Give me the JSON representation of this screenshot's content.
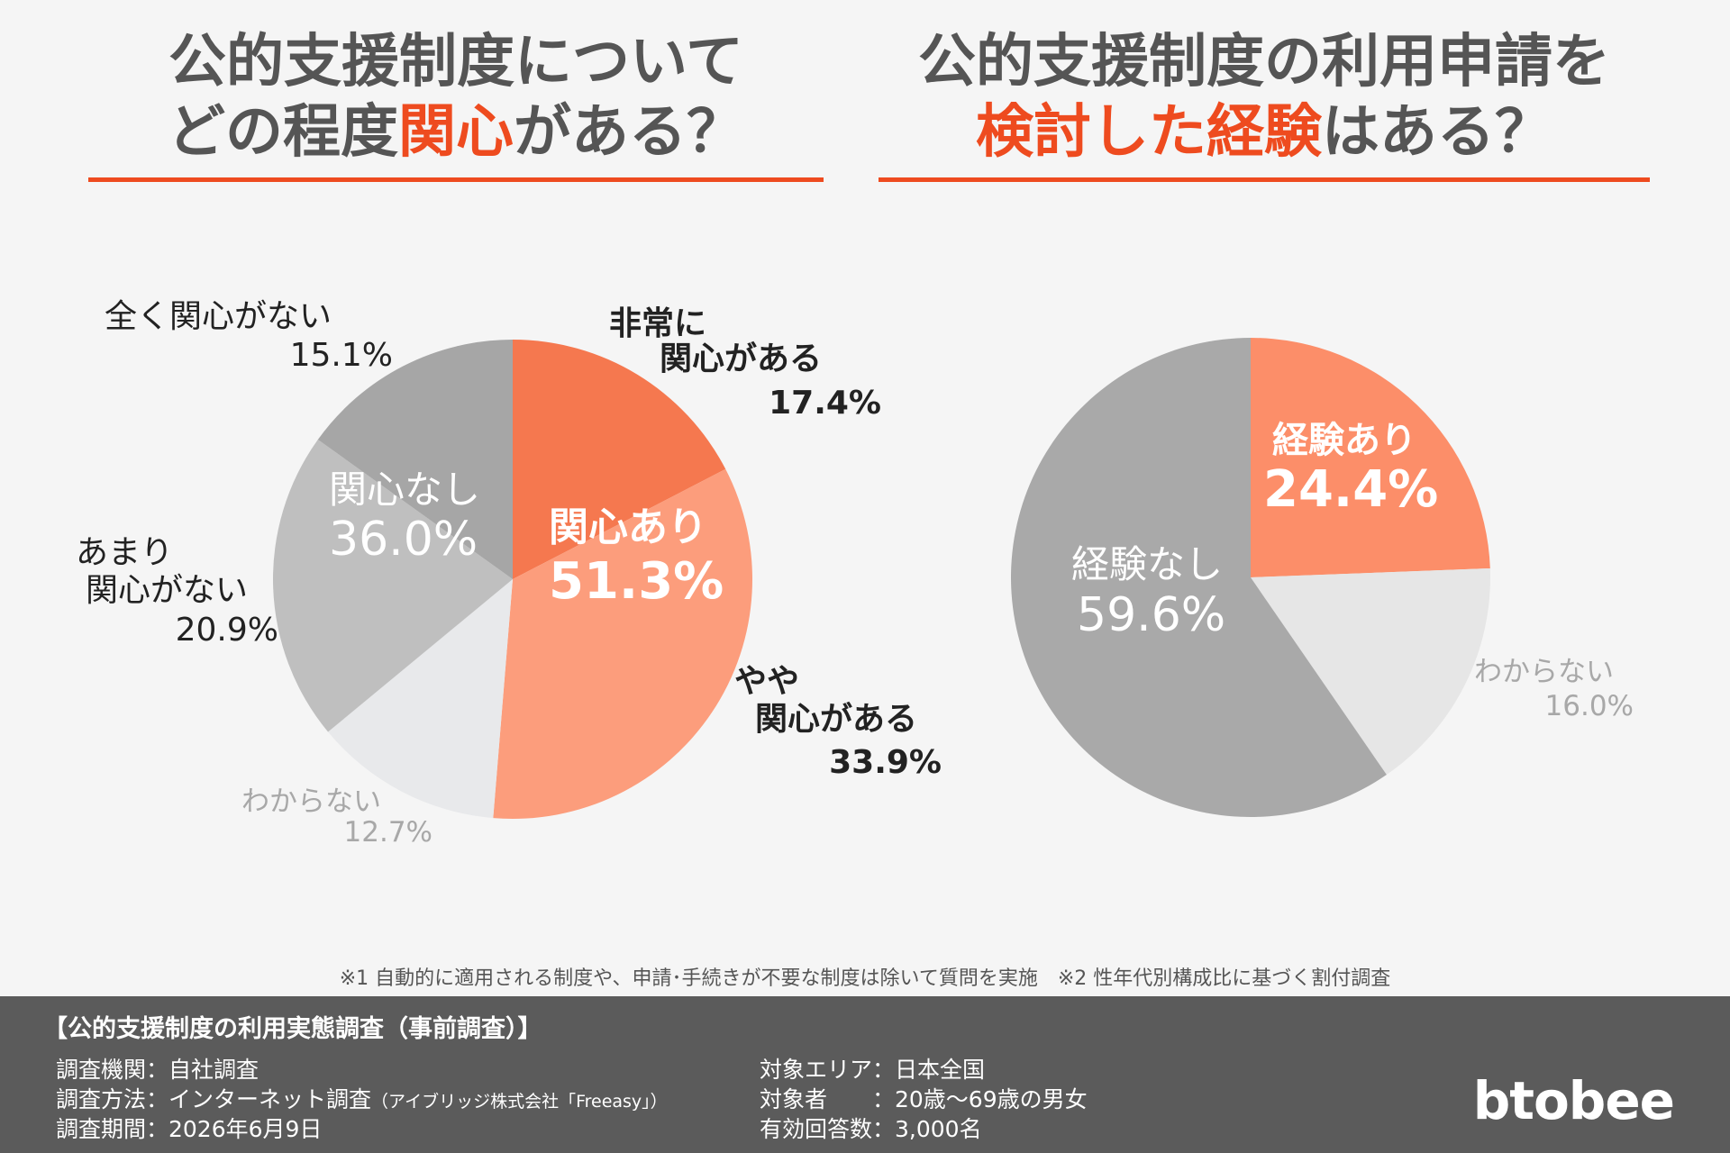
{
  "left_title": {
    "line1": "公的支援制度について",
    "line2_pre": "どの程度",
    "line2_highlight": "関心",
    "line2_post": "がある？"
  },
  "right_title": {
    "line1": "公的支援制度の利用申請を",
    "line2_highlight": "検討した経験",
    "line2_post": "はある？"
  },
  "chart_data": [
    {
      "type": "pie",
      "slices": [
        {
          "label": "非常に関心がある",
          "label_lines": [
            "非常に",
            "関心がある"
          ],
          "value": 17.4,
          "value_text": "17.4%",
          "color": "#f5784f"
        },
        {
          "label": "やや関心がある",
          "label_lines": [
            "やや",
            "関心がある"
          ],
          "value": 33.9,
          "value_text": "33.9%",
          "color": "#fc9d7c"
        },
        {
          "label": "わからない",
          "label_lines": [
            "わからない"
          ],
          "value": 12.7,
          "value_text": "12.7%",
          "color": "#e8e9eb"
        },
        {
          "label": "あまり関心がない",
          "label_lines": [
            "あまり",
            "関心がない"
          ],
          "value": 20.9,
          "value_text": "20.9%",
          "color": "#bfbfbf"
        },
        {
          "label": "全く関心がない",
          "label_lines": [
            "全く関心がない"
          ],
          "value": 15.1,
          "value_text": "15.1%",
          "color": "#a6a6a6"
        }
      ],
      "groups": [
        {
          "label": "関心あり",
          "value_text": "51.3%"
        },
        {
          "label": "関心なし",
          "value_text": "36.0%"
        }
      ]
    },
    {
      "type": "pie",
      "slices": [
        {
          "label": "経験あり",
          "value": 24.4,
          "value_text": "24.4%",
          "color": "#fc8e69"
        },
        {
          "label": "わからない",
          "value": 16.0,
          "value_text": "16.0%",
          "color": "#e6e6e6"
        },
        {
          "label": "経験なし",
          "value": 59.6,
          "value_text": "59.6%",
          "color": "#a9a9a9"
        }
      ]
    }
  ],
  "footnote": "※1 自動的に適用される制度や、申請･手続きが不要な制度は除いて質問を実施　※2 性年代別構成比に基づく割付調査",
  "footer": {
    "title": "【公的支援制度の利用実態調査（事前調査）】",
    "org": "調査機関：自社調査",
    "method": "調査方法：インターネット調査",
    "method_note": "（アイブリッジ株式会社「Freeasy」）",
    "period": "調査期間：2026年6月9日",
    "area": "対象エリア：日本全国",
    "target": "対象者　　：20歳～69歳の男女",
    "responses": "有効回答数：3,000名",
    "logo": "btobee"
  }
}
